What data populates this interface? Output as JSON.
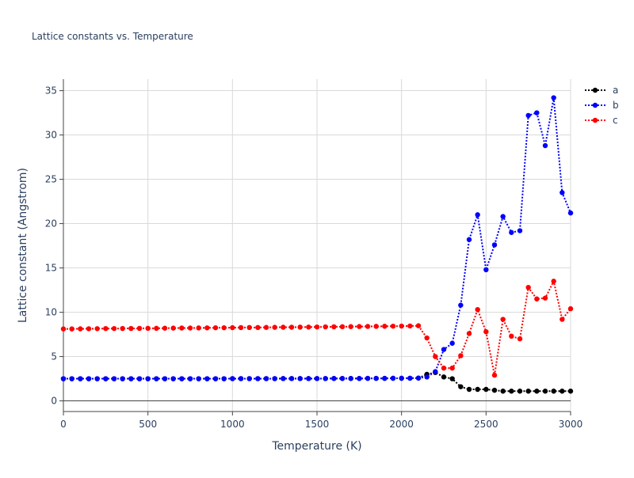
{
  "chart_data": {
    "type": "line",
    "title": "Lattice constants vs. Temperature",
    "xlabel": "Temperature (K)",
    "ylabel": "Lattice constant (Angstrom)",
    "xlim": [
      0,
      3000
    ],
    "ylim": [
      -1.2,
      36.3
    ],
    "xticks": [
      0,
      500,
      1000,
      1500,
      2000,
      2500,
      3000
    ],
    "yticks": [
      0,
      5,
      10,
      15,
      20,
      25,
      30,
      35
    ],
    "grid": true,
    "legend_position": "top-right",
    "x": [
      0,
      50,
      100,
      150,
      200,
      250,
      300,
      350,
      400,
      450,
      500,
      550,
      600,
      650,
      700,
      750,
      800,
      850,
      900,
      950,
      1000,
      1050,
      1100,
      1150,
      1200,
      1250,
      1300,
      1350,
      1400,
      1450,
      1500,
      1550,
      1600,
      1650,
      1700,
      1750,
      1800,
      1850,
      1900,
      1950,
      2000,
      2050,
      2100,
      2150,
      2200,
      2250,
      2300,
      2350,
      2400,
      2450,
      2500,
      2550,
      2600,
      2650,
      2700,
      2750,
      2800,
      2850,
      2900,
      2950,
      3000
    ],
    "series": [
      {
        "name": "a",
        "color": "#000000",
        "values": [
          2.5,
          2.5,
          2.5,
          2.5,
          2.5,
          2.5,
          2.5,
          2.5,
          2.5,
          2.5,
          2.5,
          2.5,
          2.5,
          2.5,
          2.5,
          2.5,
          2.5,
          2.5,
          2.5,
          2.5,
          2.51,
          2.51,
          2.51,
          2.51,
          2.51,
          2.51,
          2.52,
          2.52,
          2.52,
          2.52,
          2.52,
          2.52,
          2.53,
          2.53,
          2.53,
          2.53,
          2.54,
          2.54,
          2.54,
          2.55,
          2.55,
          2.56,
          2.57,
          3.0,
          3.2,
          2.7,
          2.5,
          1.6,
          1.3,
          1.3,
          1.3,
          1.2,
          1.1,
          1.1,
          1.1,
          1.1,
          1.1,
          1.1,
          1.1,
          1.1,
          1.1
        ]
      },
      {
        "name": "b",
        "color": "#0000ff",
        "values": [
          2.5,
          2.5,
          2.5,
          2.5,
          2.5,
          2.5,
          2.5,
          2.5,
          2.5,
          2.5,
          2.5,
          2.5,
          2.5,
          2.5,
          2.5,
          2.5,
          2.5,
          2.5,
          2.5,
          2.5,
          2.51,
          2.51,
          2.51,
          2.51,
          2.51,
          2.51,
          2.52,
          2.52,
          2.52,
          2.52,
          2.52,
          2.52,
          2.53,
          2.53,
          2.53,
          2.53,
          2.54,
          2.54,
          2.54,
          2.55,
          2.55,
          2.56,
          2.58,
          2.7,
          3.3,
          5.8,
          6.5,
          10.8,
          18.2,
          21.0,
          14.8,
          17.6,
          20.8,
          19.0,
          19.2,
          32.2,
          32.5,
          28.8,
          34.2,
          23.5,
          21.2
        ]
      },
      {
        "name": "c",
        "color": "#ff0000",
        "values": [
          8.12,
          8.12,
          8.13,
          8.14,
          8.15,
          8.16,
          8.16,
          8.17,
          8.17,
          8.18,
          8.19,
          8.19,
          8.2,
          8.21,
          8.22,
          8.22,
          8.23,
          8.24,
          8.25,
          8.25,
          8.26,
          8.27,
          8.28,
          8.28,
          8.29,
          8.3,
          8.31,
          8.31,
          8.32,
          8.33,
          8.34,
          8.35,
          8.36,
          8.37,
          8.38,
          8.39,
          8.4,
          8.41,
          8.42,
          8.43,
          8.44,
          8.45,
          8.48,
          7.1,
          5.0,
          3.7,
          3.7,
          5.1,
          7.6,
          10.3,
          7.8,
          2.9,
          9.2,
          7.3,
          7.0,
          12.8,
          11.5,
          11.6,
          13.5,
          9.2,
          10.4
        ]
      }
    ]
  }
}
